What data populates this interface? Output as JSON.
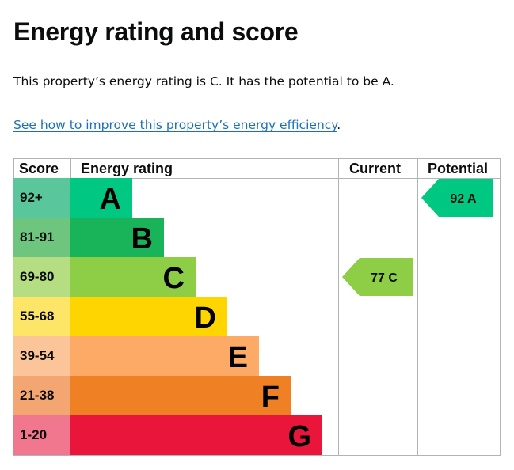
{
  "page": {
    "heading": "Energy rating and score",
    "summary": "This property’s energy rating is C. It has the potential to be A.",
    "improve_link": "See how to improve this property’s energy efficiency",
    "improve_link_suffix": "."
  },
  "chart_data": {
    "type": "bar",
    "columns": [
      "Score",
      "Energy rating",
      "Current",
      "Potential"
    ],
    "bands": [
      {
        "score": "92+",
        "letter": "A",
        "score_color": "#59c69b",
        "color": "#00c781"
      },
      {
        "score": "81-91",
        "letter": "B",
        "score_color": "#6dc57e",
        "color": "#19b459"
      },
      {
        "score": "69-80",
        "letter": "C",
        "score_color": "#b5dd82",
        "color": "#8dce46"
      },
      {
        "score": "55-68",
        "letter": "D",
        "score_color": "#fde567",
        "color": "#ffd500"
      },
      {
        "score": "39-54",
        "letter": "E",
        "score_color": "#fcc599",
        "color": "#fcaa65"
      },
      {
        "score": "21-38",
        "letter": "F",
        "score_color": "#f4a672",
        "color": "#ef8023"
      },
      {
        "score": "1-20",
        "letter": "G",
        "score_color": "#f0778d",
        "color": "#e9153b"
      }
    ],
    "current": {
      "value": 77,
      "letter": "C",
      "label": "77 C",
      "color": "#8dce46"
    },
    "potential": {
      "value": 92,
      "letter": "A",
      "label": "92 A",
      "color": "#00c781"
    }
  }
}
